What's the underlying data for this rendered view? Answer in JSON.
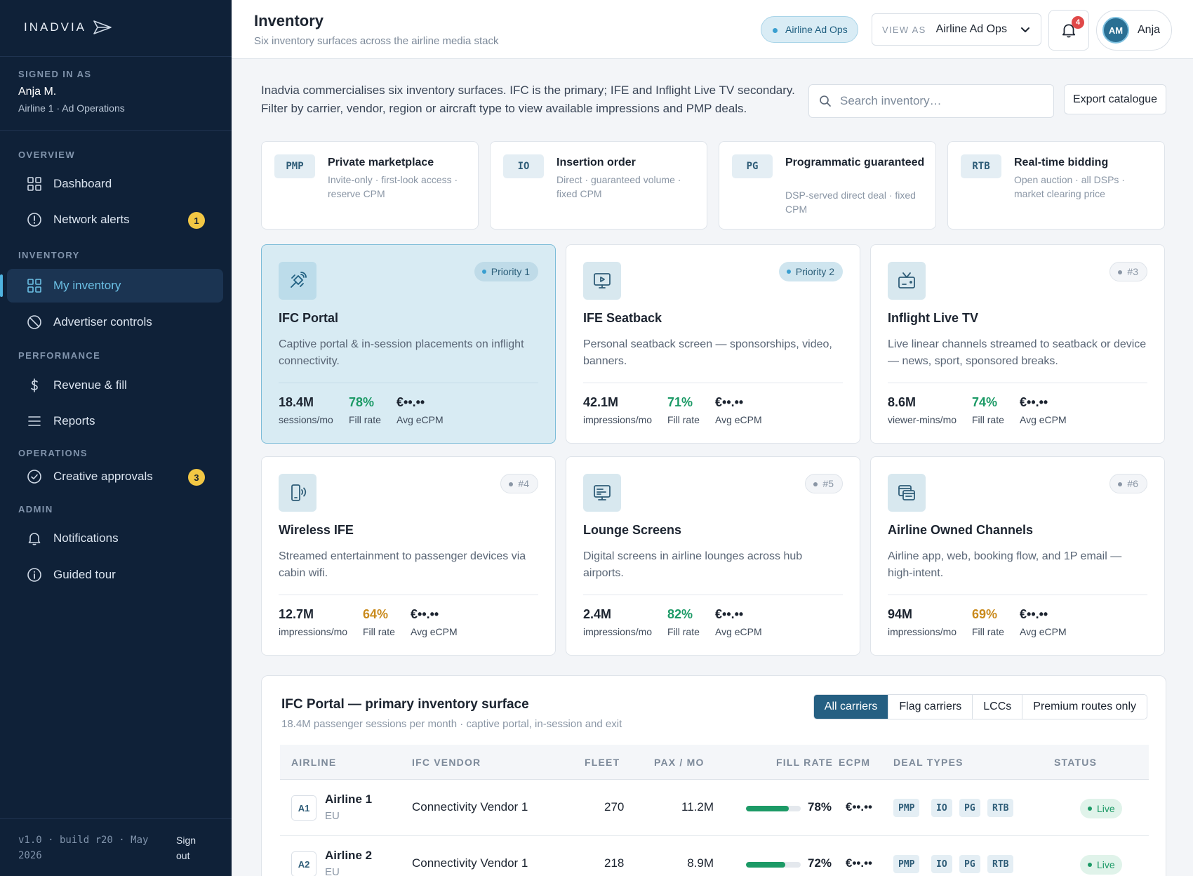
{
  "brand": {
    "logo_text": "INADVIA"
  },
  "sidebar": {
    "signed_in_label": "SIGNED IN AS",
    "user_name": "Anja M.",
    "user_org": "Airline 1 · Ad Operations",
    "sections": [
      {
        "label": "OVERVIEW",
        "items": [
          {
            "label": "Dashboard",
            "icon": "grid-icon"
          },
          {
            "label": "Network alerts",
            "icon": "alert-circle-icon",
            "badge": "1"
          }
        ]
      },
      {
        "label": "INVENTORY",
        "items": [
          {
            "label": "My inventory",
            "icon": "grid-icon",
            "active": true
          },
          {
            "label": "Advertiser controls",
            "icon": "ban-icon"
          }
        ]
      },
      {
        "label": "PERFORMANCE",
        "items": [
          {
            "label": "Revenue & fill",
            "icon": "dollar-icon"
          },
          {
            "label": "Reports",
            "icon": "list-icon"
          }
        ]
      },
      {
        "label": "OPERATIONS",
        "items": [
          {
            "label": "Creative approvals",
            "icon": "check-circle-icon",
            "badge": "3"
          }
        ]
      },
      {
        "label": "ADMIN",
        "items": [
          {
            "label": "Notifications",
            "icon": "bell-icon"
          },
          {
            "label": "Guided tour",
            "icon": "info-icon"
          }
        ]
      }
    ],
    "footer_version": "v1.0 · build r20 · May 2026",
    "signout_label": "Sign out"
  },
  "header": {
    "title": "Inventory",
    "subtitle": "Six inventory surfaces across the airline media stack",
    "role_pill": "Airline Ad Ops",
    "view_as_label": "VIEW AS",
    "view_as_value": "Airline Ad Ops",
    "notification_count": "4",
    "user_initials": "AM",
    "user_short": "Anja"
  },
  "intro": {
    "text": "Inadvia commercialises six inventory surfaces. IFC is the primary; IFE and Inflight Live TV secondary. Filter by carrier, vendor, region or aircraft type to view available impressions and PMP deals.",
    "search_placeholder": "Search inventory…",
    "export_label": "Export catalogue"
  },
  "deal_types": [
    {
      "tag": "PMP",
      "title": "Private marketplace",
      "desc": "Invite-only · first-look access · reserve CPM"
    },
    {
      "tag": "IO",
      "title": "Insertion order",
      "desc": "Direct · guaranteed volume · fixed CPM"
    },
    {
      "tag": "PG",
      "title": "Programmatic guaranteed",
      "desc": "DSP-served direct deal · fixed CPM"
    },
    {
      "tag": "RTB",
      "title": "Real-time bidding",
      "desc": "Open auction · all DSPs · market clearing price"
    }
  ],
  "surfaces": [
    {
      "title": "IFC Portal",
      "priority": "Priority 1",
      "icon": "satellite-icon",
      "desc": "Captive portal & in-session placements on inflight connectivity.",
      "volume": "18.4M",
      "volume_unit": "sessions/mo",
      "fill": "78%",
      "fill_tone": "green",
      "fill_label": "Fill rate",
      "ecpm": "€••.••",
      "ecpm_label": "Avg eCPM"
    },
    {
      "title": "IFE Seatback",
      "priority": "Priority 2",
      "icon": "screen-play-icon",
      "desc": "Personal seatback screen — sponsorships, video, banners.",
      "volume": "42.1M",
      "volume_unit": "impressions/mo",
      "fill": "71%",
      "fill_tone": "green",
      "fill_label": "Fill rate",
      "ecpm": "€••.••",
      "ecpm_label": "Avg eCPM"
    },
    {
      "title": "Inflight Live TV",
      "priority": "#3",
      "icon": "tv-icon",
      "desc": "Live linear channels streamed to seatback or device — news, sport, sponsored breaks.",
      "volume": "8.6M",
      "volume_unit": "viewer-mins/mo",
      "fill": "74%",
      "fill_tone": "green",
      "fill_label": "Fill rate",
      "ecpm": "€••.••",
      "ecpm_label": "Avg eCPM"
    },
    {
      "title": "Wireless IFE",
      "priority": "#4",
      "icon": "phone-wave-icon",
      "desc": "Streamed entertainment to passenger devices via cabin wifi.",
      "volume": "12.7M",
      "volume_unit": "impressions/mo",
      "fill": "64%",
      "fill_tone": "amber",
      "fill_label": "Fill rate",
      "ecpm": "€••.••",
      "ecpm_label": "Avg eCPM"
    },
    {
      "title": "Lounge Screens",
      "priority": "#5",
      "icon": "monitor-icon",
      "desc": "Digital screens in airline lounges across hub airports.",
      "volume": "2.4M",
      "volume_unit": "impressions/mo",
      "fill": "82%",
      "fill_tone": "green",
      "fill_label": "Fill rate",
      "ecpm": "€••.••",
      "ecpm_label": "Avg eCPM"
    },
    {
      "title": "Airline Owned Channels",
      "priority": "#6",
      "icon": "browser-stack-icon",
      "desc": "Airline app, web, booking flow, and 1P email — high-intent.",
      "volume": "94M",
      "volume_unit": "impressions/mo",
      "fill": "69%",
      "fill_tone": "amber",
      "fill_label": "Fill rate",
      "ecpm": "€••.••",
      "ecpm_label": "Avg eCPM"
    }
  ],
  "panel": {
    "title": "IFC Portal — primary inventory surface",
    "subtitle": "18.4M passenger sessions per month · captive portal, in-session and exit",
    "filters": [
      "All carriers",
      "Flag carriers",
      "LCCs",
      "Premium routes only"
    ],
    "active_filter": "All carriers",
    "columns": [
      "AIRLINE",
      "IFC VENDOR",
      "FLEET",
      "PAX / MO",
      "FILL RATE",
      "ECPM",
      "DEAL TYPES",
      "STATUS"
    ],
    "rows": [
      {
        "code": "A1",
        "airline": "Airline 1",
        "region": "EU",
        "vendor": "Connectivity Vendor 1",
        "fleet": "270",
        "pax": "11.2M",
        "fill": "78%",
        "fill_fraction": 0.78,
        "ecpm": "€••.••",
        "deals": [
          "PMP",
          "IO",
          "PG",
          "RTB"
        ],
        "status": "Live"
      },
      {
        "code": "A2",
        "airline": "Airline 2",
        "region": "EU",
        "vendor": "Connectivity Vendor 1",
        "fleet": "218",
        "pax": "8.9M",
        "fill": "72%",
        "fill_fraction": 0.72,
        "ecpm": "€••.••",
        "deals": [
          "PMP",
          "IO",
          "PG",
          "RTB"
        ],
        "status": "Live"
      }
    ]
  }
}
